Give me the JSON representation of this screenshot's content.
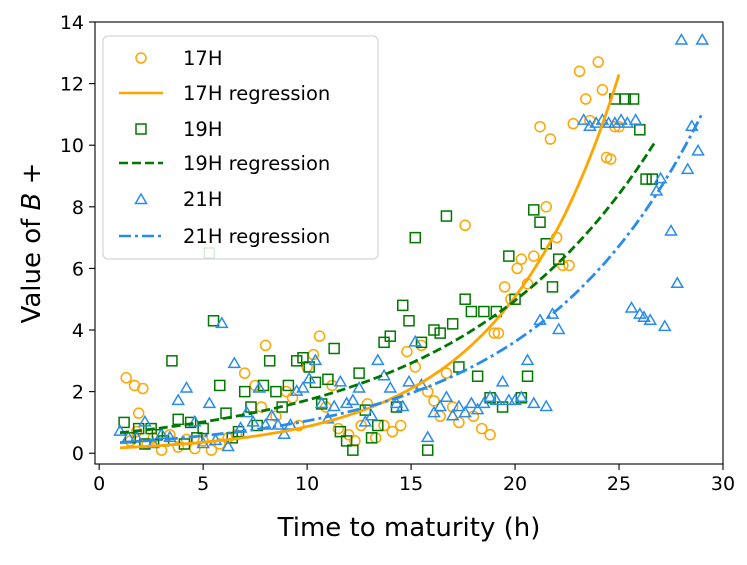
{
  "chart_data": {
    "type": "scatter",
    "title": "",
    "xlabel": "Time to maturity (h)",
    "ylabel_prefix": "Value of ",
    "ylabel_var": "B",
    "ylabel_suffix": " +",
    "xlim": [
      -0.2,
      30.0
    ],
    "ylim": [
      -0.35,
      14.0
    ],
    "xticks": [
      0,
      5,
      10,
      15,
      20,
      25,
      30
    ],
    "yticks": [
      0,
      2,
      4,
      6,
      8,
      10,
      12,
      14
    ],
    "legend_position": "top-left",
    "series": [
      {
        "name": "17H",
        "marker": "circle",
        "color": "#FFA500",
        "points": [
          [
            1.3,
            2.45
          ],
          [
            1.7,
            2.2
          ],
          [
            2.1,
            2.1
          ],
          [
            1.9,
            1.3
          ],
          [
            1.5,
            0.4
          ],
          [
            1.8,
            0.7
          ],
          [
            2.3,
            0.3
          ],
          [
            2.6,
            0.5
          ],
          [
            3.0,
            0.1
          ],
          [
            3.4,
            0.6
          ],
          [
            3.8,
            0.2
          ],
          [
            4.2,
            0.45
          ],
          [
            4.6,
            0.15
          ],
          [
            5.0,
            0.4
          ],
          [
            5.4,
            0.1
          ],
          [
            5.8,
            0.3
          ],
          [
            6.2,
            0.5
          ],
          [
            6.6,
            0.6
          ],
          [
            7.0,
            2.6
          ],
          [
            7.5,
            2.2
          ],
          [
            8.0,
            3.5
          ],
          [
            7.8,
            1.5
          ],
          [
            8.5,
            1.2
          ],
          [
            9.0,
            2.0
          ],
          [
            9.3,
            1.8
          ],
          [
            9.6,
            0.9
          ],
          [
            10.0,
            2.8
          ],
          [
            10.3,
            3.2
          ],
          [
            10.6,
            3.8
          ],
          [
            10.9,
            1.5
          ],
          [
            11.2,
            2.2
          ],
          [
            11.5,
            0.8
          ],
          [
            12.0,
            0.6
          ],
          [
            12.3,
            0.4
          ],
          [
            12.6,
            0.9
          ],
          [
            12.9,
            1.6
          ],
          [
            13.3,
            0.5
          ],
          [
            13.7,
            0.9
          ],
          [
            14.1,
            0.7
          ],
          [
            14.5,
            0.9
          ],
          [
            14.8,
            3.3
          ],
          [
            15.2,
            2.8
          ],
          [
            15.5,
            3.5
          ],
          [
            15.8,
            2.0
          ],
          [
            16.1,
            1.7
          ],
          [
            16.4,
            1.2
          ],
          [
            16.7,
            2.6
          ],
          [
            17.0,
            1.5
          ],
          [
            17.3,
            1.0
          ],
          [
            17.6,
            7.4
          ],
          [
            18.0,
            1.2
          ],
          [
            18.4,
            0.8
          ],
          [
            18.8,
            0.6
          ],
          [
            19.0,
            3.9
          ],
          [
            19.2,
            3.9
          ],
          [
            19.5,
            5.4
          ],
          [
            19.8,
            5.0
          ],
          [
            20.1,
            6.0
          ],
          [
            20.3,
            6.3
          ],
          [
            20.6,
            5.5
          ],
          [
            20.9,
            6.4
          ],
          [
            21.2,
            10.6
          ],
          [
            21.5,
            8.0
          ],
          [
            21.7,
            10.2
          ],
          [
            22.0,
            7.0
          ],
          [
            22.3,
            6.1
          ],
          [
            22.6,
            6.1
          ],
          [
            22.8,
            10.7
          ],
          [
            23.1,
            12.4
          ],
          [
            23.4,
            11.5
          ],
          [
            23.6,
            10.8
          ],
          [
            24.0,
            12.7
          ],
          [
            24.2,
            11.8
          ],
          [
            24.4,
            9.6
          ],
          [
            24.6,
            9.55
          ],
          [
            24.8,
            10.6
          ],
          [
            25.0,
            10.6
          ]
        ]
      },
      {
        "name": "19H",
        "marker": "square",
        "color": "#007700",
        "points": [
          [
            1.2,
            1.0
          ],
          [
            1.5,
            0.5
          ],
          [
            1.9,
            0.8
          ],
          [
            2.2,
            0.3
          ],
          [
            2.5,
            0.8
          ],
          [
            2.8,
            0.6
          ],
          [
            3.1,
            0.4
          ],
          [
            3.5,
            3.0
          ],
          [
            3.8,
            1.1
          ],
          [
            4.1,
            0.3
          ],
          [
            4.4,
            1.0
          ],
          [
            4.7,
            0.5
          ],
          [
            5.0,
            0.8
          ],
          [
            5.3,
            6.5
          ],
          [
            5.5,
            4.3
          ],
          [
            5.8,
            2.2
          ],
          [
            6.1,
            1.3
          ],
          [
            6.4,
            0.5
          ],
          [
            6.7,
            0.7
          ],
          [
            7.0,
            2.0
          ],
          [
            7.3,
            1.5
          ],
          [
            7.6,
            0.9
          ],
          [
            7.9,
            2.2
          ],
          [
            8.2,
            3.0
          ],
          [
            8.5,
            2.0
          ],
          [
            8.8,
            1.5
          ],
          [
            9.1,
            2.2
          ],
          [
            9.5,
            3.0
          ],
          [
            9.8,
            3.1
          ],
          [
            10.1,
            2.8
          ],
          [
            10.4,
            2.3
          ],
          [
            10.7,
            1.6
          ],
          [
            11.0,
            2.4
          ],
          [
            11.3,
            3.4
          ],
          [
            11.6,
            0.7
          ],
          [
            11.9,
            0.4
          ],
          [
            12.2,
            0.1
          ],
          [
            12.5,
            2.6
          ],
          [
            12.8,
            1.4
          ],
          [
            13.1,
            0.5
          ],
          [
            13.4,
            0.9
          ],
          [
            13.7,
            3.6
          ],
          [
            14.0,
            3.8
          ],
          [
            14.3,
            1.5
          ],
          [
            14.6,
            4.8
          ],
          [
            14.9,
            4.3
          ],
          [
            15.2,
            7.0
          ],
          [
            15.5,
            3.6
          ],
          [
            15.8,
            0.1
          ],
          [
            16.1,
            4.0
          ],
          [
            16.4,
            3.9
          ],
          [
            16.7,
            7.7
          ],
          [
            17.0,
            4.2
          ],
          [
            17.3,
            2.8
          ],
          [
            17.6,
            5.0
          ],
          [
            17.9,
            4.6
          ],
          [
            18.2,
            2.5
          ],
          [
            18.5,
            4.6
          ],
          [
            18.8,
            1.8
          ],
          [
            19.1,
            4.6
          ],
          [
            19.4,
            1.5
          ],
          [
            19.7,
            6.4
          ],
          [
            20.0,
            5.0
          ],
          [
            20.3,
            1.8
          ],
          [
            20.6,
            2.5
          ],
          [
            20.9,
            7.9
          ],
          [
            21.2,
            7.5
          ],
          [
            21.5,
            6.8
          ],
          [
            21.8,
            5.4
          ],
          [
            22.1,
            6.3
          ],
          [
            24.8,
            11.5
          ],
          [
            25.3,
            11.5
          ],
          [
            25.7,
            11.5
          ],
          [
            26.0,
            10.5
          ],
          [
            26.3,
            8.9
          ],
          [
            26.6,
            8.9
          ]
        ]
      },
      {
        "name": "21H",
        "marker": "triangle",
        "color": "#2A8CEA",
        "points": [
          [
            1.0,
            0.7
          ],
          [
            1.4,
            0.5
          ],
          [
            1.8,
            0.5
          ],
          [
            2.2,
            1.0
          ],
          [
            2.6,
            0.3
          ],
          [
            3.0,
            0.6
          ],
          [
            3.4,
            0.5
          ],
          [
            3.8,
            1.7
          ],
          [
            4.2,
            2.1
          ],
          [
            4.6,
            1.0
          ],
          [
            5.0,
            0.3
          ],
          [
            5.3,
            1.6
          ],
          [
            5.6,
            0.4
          ],
          [
            5.9,
            4.2
          ],
          [
            6.2,
            0.2
          ],
          [
            6.5,
            2.9
          ],
          [
            6.8,
            0.8
          ],
          [
            7.1,
            1.3
          ],
          [
            7.4,
            1.0
          ],
          [
            7.7,
            2.1
          ],
          [
            8.0,
            0.9
          ],
          [
            8.3,
            1.2
          ],
          [
            8.6,
            0.9
          ],
          [
            8.9,
            0.6
          ],
          [
            9.2,
            0.9
          ],
          [
            9.5,
            2.0
          ],
          [
            9.8,
            2.1
          ],
          [
            10.1,
            2.4
          ],
          [
            10.4,
            3.0
          ],
          [
            10.7,
            1.6
          ],
          [
            11.0,
            1.1
          ],
          [
            11.3,
            1.5
          ],
          [
            11.6,
            2.3
          ],
          [
            11.9,
            1.6
          ],
          [
            12.2,
            1.7
          ],
          [
            12.5,
            2.1
          ],
          [
            12.8,
            1.0
          ],
          [
            13.1,
            1.2
          ],
          [
            13.4,
            3.0
          ],
          [
            13.7,
            2.5
          ],
          [
            14.0,
            2.1
          ],
          [
            14.3,
            1.6
          ],
          [
            14.6,
            1.5
          ],
          [
            14.9,
            2.3
          ],
          [
            15.2,
            3.6
          ],
          [
            15.5,
            2.2
          ],
          [
            15.8,
            0.5
          ],
          [
            16.1,
            1.3
          ],
          [
            16.4,
            1.5
          ],
          [
            16.7,
            1.8
          ],
          [
            17.0,
            1.2
          ],
          [
            17.3,
            1.5
          ],
          [
            17.6,
            1.3
          ],
          [
            17.9,
            1.6
          ],
          [
            18.2,
            1.4
          ],
          [
            18.5,
            1.6
          ],
          [
            18.8,
            1.8
          ],
          [
            19.1,
            1.7
          ],
          [
            19.4,
            2.3
          ],
          [
            19.7,
            1.7
          ],
          [
            20.0,
            1.7
          ],
          [
            20.3,
            1.8
          ],
          [
            20.6,
            3.0
          ],
          [
            20.9,
            1.6
          ],
          [
            21.2,
            4.3
          ],
          [
            21.5,
            1.5
          ],
          [
            21.8,
            4.5
          ],
          [
            22.1,
            4.0
          ],
          [
            23.3,
            10.8
          ],
          [
            23.6,
            10.6
          ],
          [
            23.9,
            10.7
          ],
          [
            24.2,
            10.8
          ],
          [
            24.5,
            10.7
          ],
          [
            24.8,
            10.7
          ],
          [
            25.1,
            10.8
          ],
          [
            25.4,
            10.7
          ],
          [
            25.6,
            4.7
          ],
          [
            25.8,
            10.8
          ],
          [
            26.0,
            4.5
          ],
          [
            26.2,
            4.4
          ],
          [
            26.5,
            4.3
          ],
          [
            26.8,
            8.5
          ],
          [
            27.0,
            8.9
          ],
          [
            27.2,
            4.1
          ],
          [
            27.5,
            7.2
          ],
          [
            27.8,
            5.5
          ],
          [
            28.0,
            13.4
          ],
          [
            28.3,
            9.2
          ],
          [
            28.5,
            10.6
          ],
          [
            28.8,
            9.8
          ],
          [
            29.0,
            13.4
          ]
        ]
      }
    ],
    "regressions": [
      {
        "name": "17H regression",
        "color": "#FFA500",
        "dash": "solid",
        "x_range": [
          1.0,
          25.0
        ],
        "a": 0.1478,
        "b": 0.17685
      },
      {
        "name": "19H regression",
        "color": "#007700",
        "dash": "dashed",
        "x_range": [
          1.0,
          26.7
        ],
        "a": 0.5983,
        "b": 0.10575
      },
      {
        "name": "21H regression",
        "color": "#2A8CEA",
        "dash": "dashdot",
        "x_range": [
          1.0,
          29.0
        ],
        "a": 0.3047,
        "b": 0.12379
      }
    ]
  }
}
